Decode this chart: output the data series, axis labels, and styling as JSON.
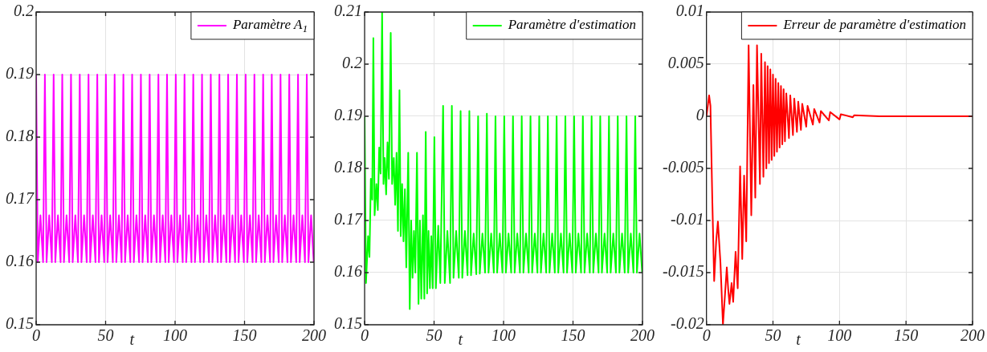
{
  "chart_data": [
    {
      "type": "line",
      "xlabel": "t",
      "xlim": [
        0,
        200
      ],
      "xticks": [
        0,
        50,
        100,
        150,
        200
      ],
      "ylim": [
        0.15,
        0.2
      ],
      "yticks": [
        0.15,
        0.16,
        0.17,
        0.18,
        0.19,
        0.2
      ],
      "grid": true,
      "legend": "top right",
      "marker": "none",
      "line_style": "solid",
      "x": [
        0,
        1.2,
        3.1,
        5,
        6.3,
        7.5,
        9.4,
        11.3,
        12.6,
        13.8,
        15.7,
        17.6,
        18.8,
        20,
        21.9,
        23.8,
        25.1,
        26.3,
        28.2,
        30.1,
        31.4,
        32.6,
        34.5,
        36.4,
        37.7,
        38.9,
        40.8,
        42.7,
        44,
        45.2,
        47.1,
        49,
        50.2,
        51.4,
        53.3,
        55.2,
        56.5,
        57.7,
        59.6,
        61.5,
        62.8,
        64,
        65.9,
        67.8,
        69.1,
        70.3,
        72.2,
        74.1,
        75.4,
        76.6,
        78.5,
        80.4,
        81.7,
        82.9,
        84.8,
        86.7,
        88,
        89.2,
        91.1,
        93,
        94.2,
        95.4,
        97.3,
        99.2,
        100.5,
        101.7,
        103.6,
        105.5,
        106.8,
        108,
        109.9,
        111.8,
        113.1,
        114.3,
        116.2,
        118.1,
        119.4,
        120.6,
        122.5,
        124.4,
        125.7,
        126.9,
        128.8,
        130.7,
        131.9,
        133.1,
        135,
        136.9,
        138.2,
        139.4,
        141.3,
        143.2,
        144.5,
        145.7,
        147.6,
        149.5,
        150.8,
        152,
        153.9,
        155.8,
        157.1,
        158.3,
        160.2,
        162.1,
        163.4,
        164.6,
        166.5,
        168.4,
        169.6,
        170.8,
        172.7,
        174.6,
        175.9,
        177.1,
        179,
        180.9,
        182.2,
        183.4,
        185.3,
        187.2,
        188.5,
        189.7,
        191.6,
        193.5,
        194.8,
        196,
        197.9,
        199.8
      ],
      "series": [
        {
          "name": "Paramètre A$_{1}$",
          "color": "#ff00ff",
          "values": [
            0.19,
            0.16,
            0.1675,
            0.16,
            0.19,
            0.16,
            0.1675,
            0.16,
            0.19,
            0.16,
            0.1675,
            0.16,
            0.19,
            0.16,
            0.1675,
            0.16,
            0.19,
            0.16,
            0.1675,
            0.16,
            0.19,
            0.16,
            0.1675,
            0.16,
            0.19,
            0.16,
            0.1675,
            0.16,
            0.19,
            0.16,
            0.1675,
            0.16,
            0.19,
            0.16,
            0.1675,
            0.16,
            0.19,
            0.16,
            0.1675,
            0.16,
            0.19,
            0.16,
            0.1675,
            0.16,
            0.19,
            0.16,
            0.1675,
            0.16,
            0.19,
            0.16,
            0.1675,
            0.16,
            0.19,
            0.16,
            0.1675,
            0.16,
            0.19,
            0.16,
            0.1675,
            0.16,
            0.19,
            0.16,
            0.1675,
            0.16,
            0.19,
            0.16,
            0.1675,
            0.16,
            0.19,
            0.16,
            0.1675,
            0.16,
            0.19,
            0.16,
            0.1675,
            0.16,
            0.19,
            0.16,
            0.1675,
            0.16,
            0.19,
            0.16,
            0.1675,
            0.16,
            0.19,
            0.16,
            0.1675,
            0.16,
            0.19,
            0.16,
            0.1675,
            0.16,
            0.19,
            0.16,
            0.1675,
            0.16,
            0.19,
            0.16,
            0.1675,
            0.16,
            0.19,
            0.16,
            0.1675,
            0.16,
            0.19,
            0.16,
            0.1675,
            0.16,
            0.19,
            0.16,
            0.1675,
            0.16,
            0.19,
            0.16,
            0.1675,
            0.16,
            0.19,
            0.16,
            0.1675,
            0.16,
            0.19,
            0.16,
            0.1675,
            0.16,
            0.19,
            0.16,
            0.1675,
            0.16
          ]
        }
      ]
    },
    {
      "type": "line",
      "xlabel": "t",
      "xlim": [
        0,
        200
      ],
      "xticks": [
        0,
        50,
        100,
        150,
        200
      ],
      "ylim": [
        0.15,
        0.21
      ],
      "yticks": [
        0.15,
        0.16,
        0.17,
        0.18,
        0.19,
        0.2,
        0.21
      ],
      "grid": true,
      "legend": "top right",
      "marker": "none",
      "line_style": "solid",
      "x": [
        0,
        1,
        2.5,
        3.5,
        4.5,
        5.5,
        6.3,
        7.2,
        8.5,
        9.5,
        10.5,
        11.5,
        12.6,
        13.6,
        14.5,
        15.5,
        16.5,
        17.5,
        18.8,
        19.8,
        21,
        22,
        23,
        24,
        25.1,
        26,
        27,
        28,
        29,
        30,
        31.4,
        32.5,
        33.5,
        34.5,
        35.5,
        36.5,
        37.7,
        38.8,
        39.8,
        40.8,
        42,
        43,
        44,
        45,
        46,
        47,
        48,
        49,
        50.2,
        51.3,
        53,
        54.5,
        56.5,
        57.7,
        59.6,
        61.5,
        62.8,
        64,
        65.9,
        67.8,
        69.1,
        70.3,
        72.2,
        74.1,
        75.4,
        76.6,
        78.5,
        80.4,
        81.7,
        82.9,
        84.8,
        86.7,
        88,
        89.2,
        91.1,
        93,
        94.2,
        95.4,
        97.3,
        99.2,
        100.5,
        101.7,
        103.6,
        105.5,
        106.8,
        108,
        109.9,
        111.8,
        113.1,
        114.3,
        116.2,
        118.1,
        119.4,
        120.6,
        122.5,
        124.4,
        125.7,
        126.9,
        128.8,
        130.7,
        131.9,
        133.1,
        135,
        136.9,
        138.2,
        139.4,
        141.3,
        143.2,
        144.5,
        145.7,
        147.6,
        149.5,
        150.8,
        152,
        153.9,
        155.8,
        157.1,
        158.3,
        160.2,
        162.1,
        163.4,
        164.6,
        166.5,
        168.4,
        169.6,
        170.8,
        172.7,
        174.6,
        175.9,
        177.1,
        179,
        180.9,
        182.2,
        183.4,
        185.3,
        187.2,
        188.5,
        189.7,
        191.6,
        193.5,
        194.8,
        196,
        197.9,
        199.8
      ],
      "series": [
        {
          "name": "Paramètre d'estimation",
          "color": "#00ff00",
          "values": [
            0.19,
            0.158,
            0.167,
            0.163,
            0.178,
            0.174,
            0.205,
            0.171,
            0.177,
            0.172,
            0.184,
            0.179,
            0.21,
            0.177,
            0.182,
            0.175,
            0.185,
            0.178,
            0.206,
            0.177,
            0.182,
            0.173,
            0.183,
            0.168,
            0.195,
            0.167,
            0.177,
            0.166,
            0.176,
            0.161,
            0.183,
            0.153,
            0.17,
            0.159,
            0.168,
            0.16,
            0.183,
            0.154,
            0.17,
            0.155,
            0.171,
            0.155,
            0.187,
            0.156,
            0.168,
            0.157,
            0.167,
            0.157,
            0.186,
            0.157,
            0.169,
            0.158,
            0.192,
            0.158,
            0.168,
            0.158,
            0.192,
            0.159,
            0.168,
            0.159,
            0.191,
            0.159,
            0.168,
            0.1595,
            0.191,
            0.1595,
            0.1675,
            0.1597,
            0.19,
            0.1598,
            0.1675,
            0.16,
            0.1905,
            0.16,
            0.1675,
            0.16,
            0.19,
            0.16,
            0.1675,
            0.16,
            0.19,
            0.16,
            0.1675,
            0.16,
            0.19,
            0.16,
            0.1675,
            0.16,
            0.19,
            0.16,
            0.1675,
            0.16,
            0.19,
            0.16,
            0.1675,
            0.16,
            0.19,
            0.16,
            0.1675,
            0.16,
            0.19,
            0.16,
            0.1675,
            0.16,
            0.19,
            0.16,
            0.1675,
            0.16,
            0.19,
            0.16,
            0.1675,
            0.16,
            0.19,
            0.16,
            0.1675,
            0.16,
            0.19,
            0.16,
            0.1675,
            0.16,
            0.19,
            0.16,
            0.1675,
            0.16,
            0.19,
            0.16,
            0.1675,
            0.16,
            0.19,
            0.16,
            0.1675,
            0.16,
            0.19,
            0.16,
            0.1675,
            0.16,
            0.19,
            0.16,
            0.1675,
            0.16,
            0.19,
            0.16,
            0.1675,
            0.16
          ]
        }
      ]
    },
    {
      "type": "line",
      "xlabel": "t",
      "xlim": [
        0,
        200
      ],
      "xticks": [
        0,
        50,
        100,
        150,
        200
      ],
      "ylim": [
        -0.02,
        0.01
      ],
      "yticks": [
        -0.02,
        -0.015,
        -0.01,
        -0.005,
        0,
        0.005,
        0.01
      ],
      "grid": true,
      "legend": "top right",
      "marker": "none",
      "line_style": "solid",
      "x": [
        0,
        2,
        3,
        4.4,
        5.8,
        7.3,
        8.6,
        10.5,
        12.4,
        14,
        15.3,
        16.3,
        17.3,
        18.9,
        20.1,
        21.9,
        23.5,
        25.3,
        26.9,
        28.3,
        29.9,
        31.7,
        33.7,
        35.3,
        36.7,
        38,
        40.2,
        41.2,
        42.8,
        44,
        45,
        46,
        47,
        48,
        49,
        50,
        51,
        52,
        53,
        54,
        55,
        56,
        57,
        58,
        59,
        60,
        62,
        63,
        65,
        66,
        68,
        69,
        71,
        72,
        75,
        76,
        80,
        81,
        85,
        86,
        92,
        93,
        100,
        101,
        110,
        111,
        130,
        200
      ],
      "series": [
        {
          "name": "Erreur de paramètre d'estimation",
          "color": "#ff0000",
          "values": [
            0,
            0.002,
            0.001,
            -0.008,
            -0.0158,
            -0.012,
            -0.0101,
            -0.014,
            -0.02,
            -0.017,
            -0.0145,
            -0.0165,
            -0.018,
            -0.016,
            -0.0178,
            -0.013,
            -0.0165,
            -0.0048,
            -0.0137,
            -0.0057,
            -0.012,
            0.0068,
            -0.0095,
            0.003,
            -0.0078,
            0.0068,
            -0.0065,
            0.006,
            -0.0058,
            0.0052,
            -0.005,
            0.0048,
            -0.0045,
            0.0045,
            -0.0042,
            0.004,
            -0.0038,
            0.0036,
            -0.0034,
            0.0032,
            -0.003,
            0.0029,
            -0.0027,
            0.0026,
            -0.0024,
            0.0022,
            -0.0021,
            0.002,
            -0.0018,
            0.0017,
            -0.0015,
            0.0014,
            -0.0013,
            0.0012,
            -0.001,
            0.001,
            -0.0008,
            0.0007,
            -0.0006,
            0.0005,
            -0.0004,
            0.0004,
            -0.0003,
            0.0002,
            -0.0001,
            0.0001,
            0,
            0
          ]
        }
      ]
    }
  ]
}
